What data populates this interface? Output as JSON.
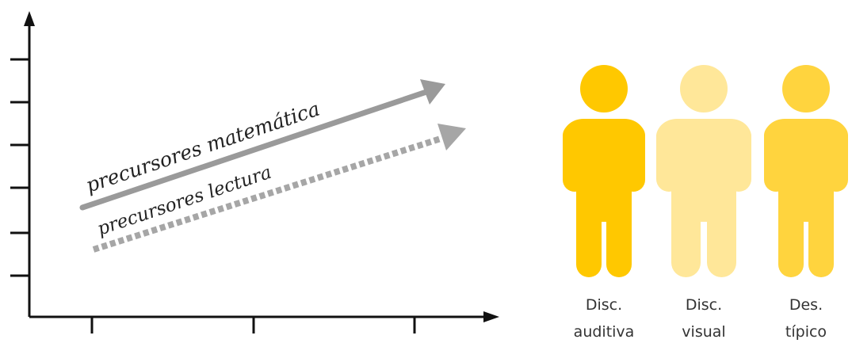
{
  "chart": {
    "x_ticks": 3,
    "y_ticks": 6,
    "arrows": [
      {
        "label": "precursores matemática",
        "style": "solid",
        "color": "#9a9a9a"
      },
      {
        "label": "precursores lectura",
        "style": "dotted",
        "color": "#a6a6a6"
      }
    ]
  },
  "figures": [
    {
      "line1": "Disc.",
      "line2": "auditiva",
      "color": "#FFC800"
    },
    {
      "line1": "Disc.",
      "line2": "visual",
      "color": "#FFE799"
    },
    {
      "line1": "Des.",
      "line2": "típico",
      "color": "#FFD43E"
    }
  ]
}
